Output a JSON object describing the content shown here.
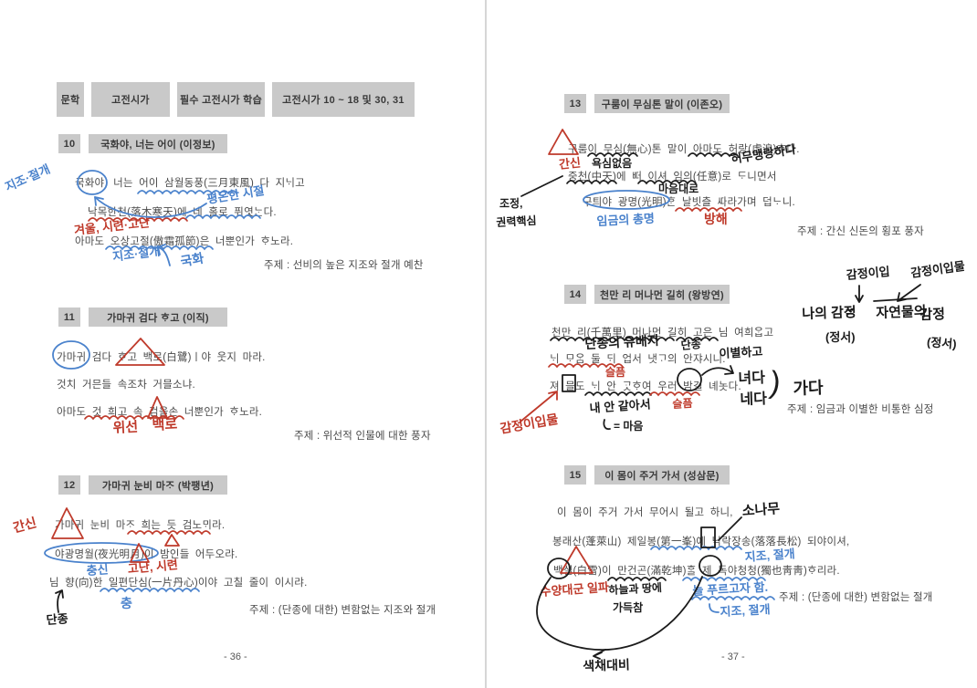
{
  "header": {
    "c1": "문학",
    "c2": "고전시가",
    "c3": "필수 고전시가 학습",
    "c4": "고전시가 10 ~ 18 및 30, 31"
  },
  "page36": "- 36 -",
  "page37": "- 37 -",
  "s10": {
    "num": "10",
    "title": "국화야, 너는 어이 (이정보)",
    "l1": "국화야, 너는 어이 삼월동풍(三月東風) 다 지ᄂᆡ고",
    "l2": "낙목한천(落木寒天)에 네 홀로 퓌엿ᄂᆞᆫ다.",
    "l3": "아마도 오상고절(傲霜孤節)은 너뿐인가 ᄒᆞ노라.",
    "theme": "주제 : 선비의 높은 지조와 절개 예찬",
    "a_left": "지조·절개",
    "a_season": "평온한 시절",
    "a_winter": "겨울, 시련·고난",
    "a_fid": "지조·절개",
    "a_flower": "국화"
  },
  "s11": {
    "num": "11",
    "title": "가마귀 검다 ᄒᆞ고 (이직)",
    "l1": "가마귀 검다 ᄒᆞ고 백로(白鷺)ㅣ야 웃지 마라.",
    "l2": "것치 거믄들 속조차 거믈소냐.",
    "l3": "아마도 것 희고 속 검을손 너뿐인가 ᄒᆞ노라.",
    "theme": "주제 : 위선적 인물에 대한 풍자",
    "a_hypocrisy": "위선",
    "a_heron": "백로"
  },
  "s12": {
    "num": "12",
    "title": "가마귀 눈비 마ᄌᆞ (박팽년)",
    "l1": "가마귀 눈비 마ᄌᆞ 희는 듯 검노ᄆᆡ라.",
    "l2": "야광명월(夜光明月)이 밤인들 어두오랴.",
    "l3": "님 향(向)한 일편단심(一片丹心)이야 고칠 줄이 이시랴.",
    "theme": "주제 : (단종에 대한) 변함없는 지조와 절개",
    "a_gansin": "간신",
    "a_chungsin": "충신",
    "a_trial": "고난, 시련",
    "a_chung": "충",
    "a_danjong": "단종"
  },
  "s13": {
    "num": "13",
    "title": "구룸이 무심톤 말이 (이존오)",
    "l1": "구룸이 무심(無心)톤 말이 아마도 허랑(虛浪)ᄒᆞ다.",
    "l2": "중천(中天)에 ᄠᅥ 이셔 임의(任意)로 ᄃᆞ니면서",
    "l3": "구틔야 광명(光明)ᄒᆞᆫ 날빗츨 ᄯᅡ라가며 덥ᄂᆞ니.",
    "theme": "주제 : 간신 신돈의 횡포 풍자",
    "a_gansin": "간신",
    "a_nogreed": "욕심없음",
    "a_absurd": "허무맹랑하다",
    "a_court": "조정,",
    "a_power": "권력핵심",
    "a_will": "마음대로",
    "a_wisdom": "임금의 총명",
    "a_block": "방해"
  },
  "s14": {
    "num": "14",
    "title": "천만 리 머나먼 길히 (왕방연)",
    "l1": "천만 리(千萬里) 머나먼 길히 고은 님 여희ᄋᆞᆸ고",
    "l2": "ᄂᆡ ᄆᆞᄋᆞᆷ 둘 ᄃᆡ 업서 냇ᄀᆞ의 안쟈시니.",
    "l3": "져 믈도 ᄂᆡ 안 ᄀᆞᆺᄒᆞ여 우러 밤길 녜놋다.",
    "theme": "주제 : 임금과 이별한 비통한 심정",
    "a_exile": "단종의 유배지",
    "a_danjong": "단종",
    "a_parting": "이별하고",
    "a_sad1": "슬픔",
    "a_sad2": "슬픔",
    "a_likeme": "내 안 같아서",
    "a_mind": "= 마음",
    "a_empathy": "감정이입물",
    "a_nyeoda": "녀다",
    "a_neda": "네다",
    "a_paren": ")",
    "a_gada": "가다",
    "d_empathy": "감정이입",
    "d_empathy_obj": "감정이입물",
    "d_myfeel": "나의 감정",
    "d_eq": "=",
    "d_nature": "자연물의",
    "d_feel": "감정",
    "d_emotion1": "(정서)",
    "d_emotion2": "(정서)"
  },
  "s15": {
    "num": "15",
    "title": "이 몸이 주거 가서 (성삼문)",
    "l1": "이 몸이 주거 가서 무어시 될고 하니,",
    "l2": "봉래산(蓬萊山) 제일봉(第一峯)에 낙락장송(落落長松) 되야이셔,",
    "l3": "백설(白雪)이 만건곤(滿乾坤)ᄒᆞᆯ 제 독야청청(獨也靑靑)ᄒᆞ리라.",
    "theme": "주제 : (단종에 대한) 변함없는 절개",
    "a_pine": "소나무",
    "a_jijo1": "지조, 절개",
    "a_suyang": "수양대군 일파",
    "a_sky": "하늘과 땅에",
    "a_full": "가득참",
    "a_evergreen": "늘 푸르고자 함.",
    "a_jijo2": "지조, 절개",
    "a_contrast": "색채대비"
  },
  "colors": {
    "blue_pen": "#4a82cc",
    "red_pen": "#bf3a2b",
    "black_pen": "#1b1b1b",
    "box_gray": "#c9c9c9"
  }
}
